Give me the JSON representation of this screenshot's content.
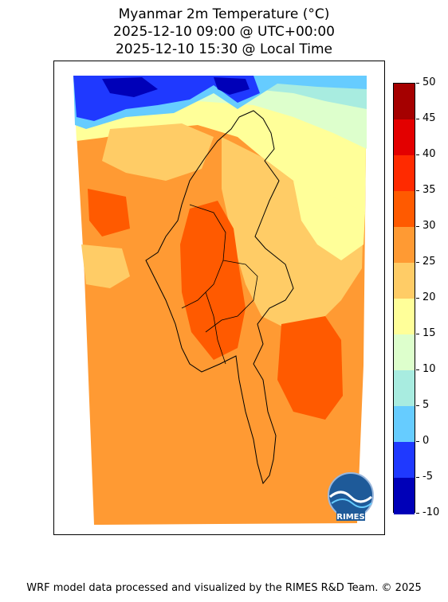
{
  "title": {
    "line1": "Myanmar 2m Temperature (°C)",
    "line2": "2025-12-10 09:00 @ UTC+00:00",
    "line3": "2025-12-10 15:30 @ Local Time"
  },
  "colorbar": {
    "levels": [
      {
        "label": "50",
        "color": "#a50000"
      },
      {
        "label": "45",
        "color": "#e30000"
      },
      {
        "label": "40",
        "color": "#ff2a00"
      },
      {
        "label": "35",
        "color": "#ff5a00"
      },
      {
        "label": "30",
        "color": "#ff9a33"
      },
      {
        "label": "25",
        "color": "#ffcc66"
      },
      {
        "label": "20",
        "color": "#ffff99"
      },
      {
        "label": "15",
        "color": "#ddffcc"
      },
      {
        "label": "10",
        "color": "#a8ece0"
      },
      {
        "label": "5",
        "color": "#66ccff"
      },
      {
        "label": "0",
        "color": "#1f39ff"
      },
      {
        "label": "-5",
        "color": "#0000b8"
      },
      {
        "label": "-10",
        "color": null
      }
    ]
  },
  "logo": {
    "text": "RIMES"
  },
  "credit": "WRF model data processed and visualized by the RIMES R&D Team. © 2025"
}
